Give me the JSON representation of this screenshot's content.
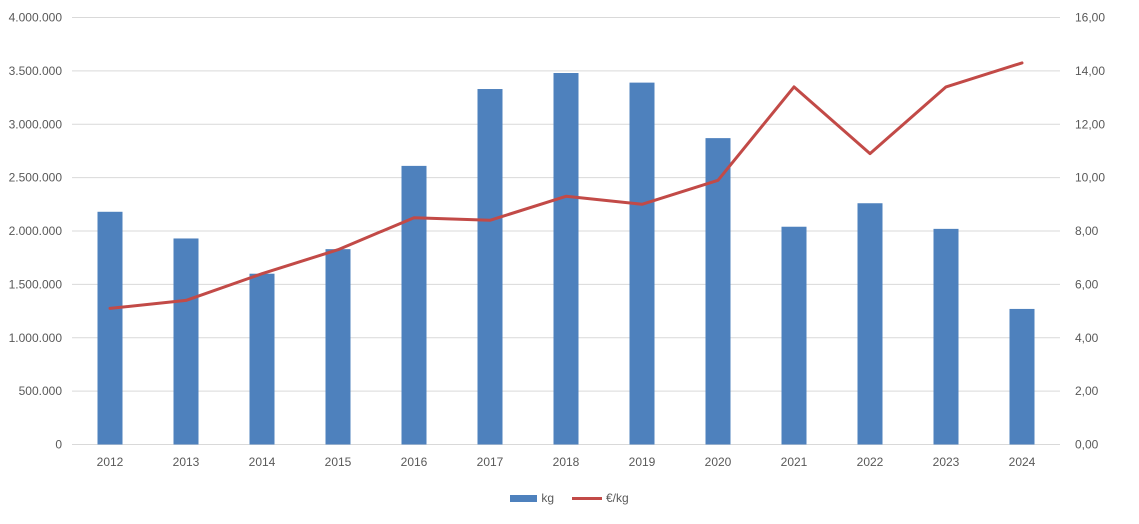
{
  "chart_data": {
    "type": "combo-bar-line",
    "title": "",
    "categories": [
      "2012",
      "2013",
      "2014",
      "2015",
      "2016",
      "2017",
      "2018",
      "2019",
      "2020",
      "2021",
      "2022",
      "2023",
      "2024"
    ],
    "series": [
      {
        "name": "kg",
        "type": "bar",
        "axis": "left",
        "values": [
          2180000,
          1930000,
          1600000,
          1830000,
          2610000,
          3330000,
          3480000,
          3390000,
          2870000,
          2040000,
          2260000,
          2020000,
          1270000
        ]
      },
      {
        "name": "€/kg",
        "type": "line",
        "axis": "right",
        "values": [
          5.1,
          5.4,
          6.4,
          7.3,
          8.5,
          8.4,
          9.3,
          9.0,
          9.9,
          13.4,
          10.9,
          13.4,
          14.3
        ]
      }
    ],
    "left_axis": {
      "min": 0,
      "max": 4000000,
      "step": 500000,
      "tick_labels": [
        "0",
        "500.000",
        "1.000.000",
        "1.500.000",
        "2.000.000",
        "2.500.000",
        "3.000.000",
        "3.500.000",
        "4.000.000"
      ]
    },
    "right_axis": {
      "min": 0,
      "max": 16,
      "step": 2,
      "tick_labels": [
        "0,00",
        "2,00",
        "4,00",
        "6,00",
        "8,00",
        "10,00",
        "12,00",
        "14,00",
        "16,00"
      ]
    },
    "legend": {
      "position": "bottom",
      "entries": [
        "kg",
        "€/kg"
      ]
    },
    "grid": true,
    "colors": {
      "bar": "#4E81BD",
      "line": "#C24A47",
      "grid": "#D9D9D9",
      "axis_line": "#D9D9D9",
      "axis_text": "#595959",
      "background": "#FFFFFF"
    }
  }
}
